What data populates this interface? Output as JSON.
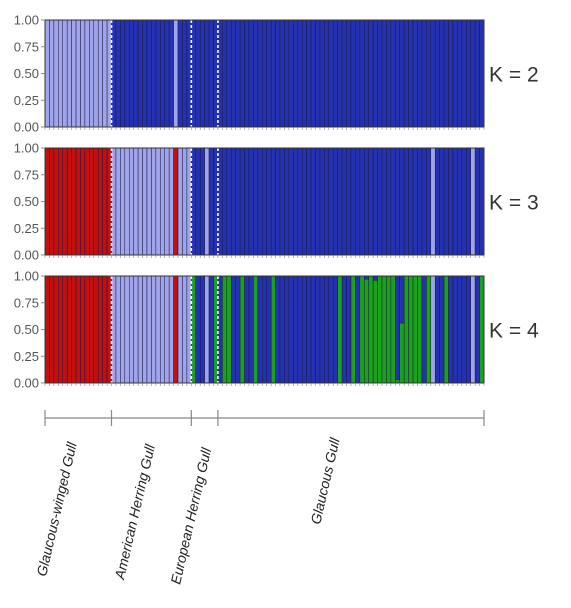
{
  "chart_data": {
    "type": "stacked-bar",
    "populations": [
      {
        "name": "Glaucous-winged Gull",
        "count": 15
      },
      {
        "name": "American Herring Gull",
        "count": 18
      },
      {
        "name": "European Herring Gull",
        "count": 6
      },
      {
        "name": "Glaucous Gull",
        "count": 60
      }
    ],
    "y_ticks": [
      "1.00",
      "0.75",
      "0.50",
      "0.25",
      "0.00"
    ],
    "ylim": [
      0,
      1
    ],
    "colors": {
      "red": "#c40f0f",
      "lightblue": "#9fa4eb",
      "darkblue": "#2431b1",
      "green": "#1aa31a",
      "separator": "#ffffff",
      "axis": "#888888"
    },
    "panels": [
      {
        "label": "K = 2",
        "series": [
          "lightblue",
          "darkblue"
        ],
        "default": "darkblue",
        "overrides": [
          {
            "from": 0,
            "to": 14,
            "cluster": "lightblue"
          },
          {
            "from": 29,
            "to": 29,
            "cluster": "lightblue"
          }
        ]
      },
      {
        "label": "K = 3",
        "series": [
          "red",
          "lightblue",
          "darkblue"
        ],
        "default": "darkblue",
        "overrides": [
          {
            "from": 0,
            "to": 14,
            "cluster": "red"
          },
          {
            "from": 15,
            "to": 32,
            "cluster": "lightblue"
          },
          {
            "from": 29,
            "to": 29,
            "cluster": "red"
          },
          {
            "from": 36,
            "to": 36,
            "cluster": "lightblue"
          },
          {
            "from": 87,
            "to": 87,
            "cluster": "lightblue"
          },
          {
            "from": 96,
            "to": 96,
            "cluster": "lightblue"
          }
        ]
      },
      {
        "label": "K = 4",
        "series": [
          "red",
          "lightblue",
          "darkblue",
          "green"
        ],
        "default": "darkblue",
        "overrides": [
          {
            "from": 0,
            "to": 14,
            "cluster": "red"
          },
          {
            "from": 15,
            "to": 32,
            "cluster": "lightblue"
          },
          {
            "from": 29,
            "to": 29,
            "cluster": "red"
          },
          {
            "from": 33,
            "to": 33,
            "cluster": "green"
          },
          {
            "from": 36,
            "to": 36,
            "cluster": "lightblue"
          },
          {
            "from": 38,
            "to": 38,
            "cluster": "green"
          },
          {
            "from": 40,
            "to": 41,
            "cluster": "green"
          },
          {
            "from": 44,
            "to": 44,
            "cluster": "green"
          },
          {
            "from": 47,
            "to": 47,
            "cluster": "green"
          },
          {
            "from": 51,
            "to": 51,
            "cluster": "green"
          },
          {
            "from": 66,
            "to": 66,
            "cluster": "green"
          },
          {
            "from": 69,
            "to": 69,
            "cluster": "green"
          },
          {
            "from": 71,
            "to": 73,
            "cluster": "green"
          },
          {
            "from": 75,
            "to": 75,
            "cluster": "green"
          },
          {
            "from": 76,
            "to": 76,
            "cluster": "green"
          },
          {
            "from": 77,
            "to": 78,
            "cluster": "green"
          },
          {
            "from": 81,
            "to": 84,
            "cluster": "green"
          },
          {
            "from": 86,
            "to": 86,
            "cluster": "green"
          },
          {
            "from": 87,
            "to": 87,
            "cluster": "lightblue"
          },
          {
            "from": 90,
            "to": 90,
            "cluster": "green"
          },
          {
            "from": 96,
            "to": 96,
            "cluster": "lightblue"
          },
          {
            "from": 98,
            "to": 98,
            "cluster": "green"
          }
        ],
        "mixed": [
          {
            "index": 72,
            "darkblue": 0.03,
            "green": 0.97
          },
          {
            "index": 74,
            "darkblue": 0.04,
            "green": 0.96
          },
          {
            "index": 79,
            "darkblue": 0.97,
            "green": 0.03
          },
          {
            "index": 80,
            "darkblue": 0.44,
            "green": 0.56
          }
        ]
      }
    ]
  }
}
